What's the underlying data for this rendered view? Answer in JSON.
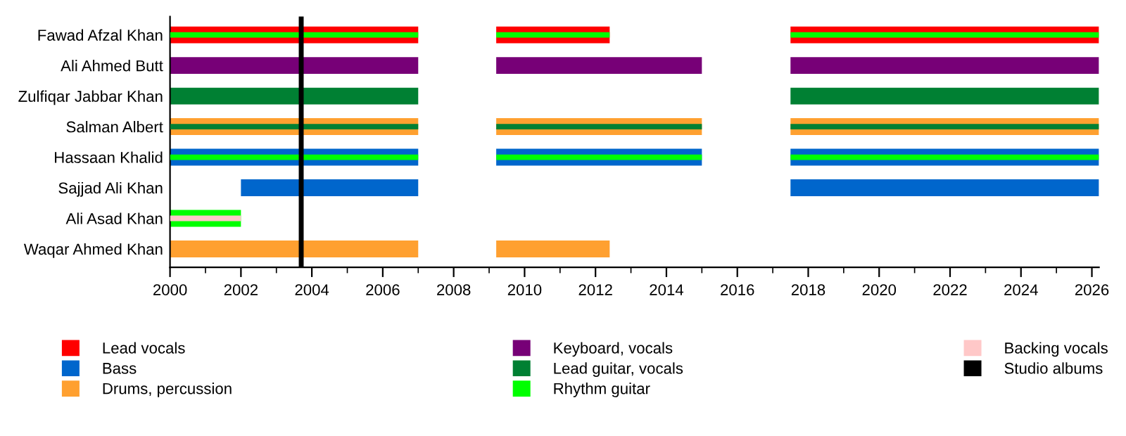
{
  "chart_data": {
    "type": "bar",
    "orientation": "horizontal",
    "categories": [
      "Fawad Afzal Khan",
      "Ali Ahmed Butt",
      "Zulfiqar Jabbar Khan",
      "Salman Albert",
      "Hassaan Khalid",
      "Sajjad Ali Khan",
      "Ali Asad Khan",
      "Waqar Ahmed Khan"
    ],
    "series": [
      {
        "name": "Lead vocals",
        "color": "#ff0000",
        "base": [
          2000,
          null,
          null,
          null,
          null,
          null,
          null,
          null
        ],
        "values": [
          7,
          null,
          null,
          null,
          null,
          null,
          null,
          null
        ]
      },
      {
        "color": "#ff0000",
        "base": [
          2009.2,
          null,
          null,
          null,
          null,
          null,
          null,
          null
        ],
        "values": [
          3.2,
          null,
          null,
          null,
          null,
          null,
          null,
          null
        ]
      },
      {
        "color": "#ff0000",
        "base": [
          2017.5,
          null,
          null,
          null,
          null,
          null,
          null,
          null
        ],
        "values": [
          8.7,
          null,
          null,
          null,
          null,
          null,
          null,
          null
        ]
      },
      {
        "name": "Bass",
        "color": "#0066cc",
        "base": [
          null,
          null,
          null,
          null,
          2000,
          2002,
          null,
          null
        ],
        "values": [
          null,
          null,
          null,
          null,
          7,
          5,
          null,
          null
        ]
      },
      {
        "color": "#0066cc",
        "base": [
          null,
          null,
          null,
          null,
          2009.2,
          null,
          null,
          null
        ],
        "values": [
          null,
          null,
          null,
          null,
          5.8,
          null,
          null,
          null
        ]
      },
      {
        "color": "#0066cc",
        "base": [
          null,
          null,
          null,
          null,
          2017.5,
          2017.5,
          null,
          null
        ],
        "values": [
          null,
          null,
          null,
          null,
          8.7,
          8.7,
          null,
          null
        ]
      },
      {
        "name": "Drums, percussion",
        "color": "#ffa030",
        "base": [
          null,
          null,
          null,
          2000,
          null,
          null,
          null,
          2000
        ],
        "values": [
          null,
          null,
          null,
          7,
          null,
          null,
          null,
          7
        ]
      },
      {
        "color": "#ffa030",
        "base": [
          null,
          null,
          null,
          2009.2,
          null,
          null,
          null,
          2009.2
        ],
        "values": [
          null,
          null,
          null,
          5.8,
          null,
          null,
          null,
          3.2
        ]
      },
      {
        "color": "#ffa030",
        "base": [
          null,
          null,
          null,
          2017.5,
          null,
          null,
          null,
          null
        ],
        "values": [
          null,
          null,
          null,
          8.7,
          null,
          null,
          null,
          null
        ]
      },
      {
        "name": "Keyboard, vocals",
        "color": "#770077",
        "base": [
          null,
          2000,
          null,
          null,
          null,
          null,
          null,
          null
        ],
        "values": [
          null,
          7,
          null,
          null,
          null,
          null,
          null,
          null
        ]
      },
      {
        "color": "#770077",
        "base": [
          null,
          2009.2,
          null,
          null,
          null,
          null,
          null,
          null
        ],
        "values": [
          null,
          5.8,
          null,
          null,
          null,
          null,
          null,
          null
        ]
      },
      {
        "color": "#770077",
        "base": [
          null,
          2017.5,
          null,
          null,
          null,
          null,
          null,
          null
        ],
        "values": [
          null,
          8.7,
          null,
          null,
          null,
          null,
          null,
          null
        ]
      },
      {
        "name": "Lead guitar, vocals",
        "color": "#008033",
        "base": [
          null,
          null,
          2000,
          2000,
          null,
          null,
          null,
          null
        ],
        "values": [
          null,
          null,
          7,
          7,
          null,
          null,
          null,
          null
        ]
      },
      {
        "color": "#008033",
        "base": [
          null,
          null,
          null,
          2009.2,
          null,
          null,
          null,
          null
        ],
        "values": [
          null,
          null,
          null,
          5.8,
          null,
          null,
          null,
          null
        ]
      },
      {
        "color": "#008033",
        "base": [
          null,
          null,
          2017.5,
          2017.5,
          null,
          null,
          null,
          null
        ],
        "values": [
          null,
          null,
          8.7,
          8.7,
          null,
          null,
          null,
          null
        ]
      },
      {
        "name": "Rhythm guitar",
        "color": "#00ff00",
        "base": [
          2000,
          null,
          null,
          null,
          2000,
          null,
          2000,
          null
        ],
        "values": [
          7,
          null,
          null,
          null,
          7,
          null,
          2,
          null
        ]
      },
      {
        "color": "#00ff00",
        "base": [
          2009.2,
          null,
          null,
          null,
          2009.2,
          null,
          null,
          null
        ],
        "values": [
          3.2,
          null,
          null,
          null,
          5.8,
          null,
          null,
          null
        ]
      },
      {
        "color": "#00ff00",
        "base": [
          2017.5,
          null,
          null,
          null,
          2017.5,
          null,
          null,
          null
        ],
        "values": [
          8.7,
          null,
          null,
          null,
          8.7,
          null,
          null,
          null
        ]
      },
      {
        "name": "Backing vocals",
        "color": "#ffc8c8",
        "base": [
          null,
          null,
          null,
          null,
          null,
          null,
          2000,
          null
        ],
        "values": [
          null,
          null,
          null,
          null,
          null,
          null,
          2,
          null
        ]
      }
    ],
    "ref_lines": [
      {
        "axis": "x",
        "value": 2003.7,
        "label": "Studio albums",
        "color": "#000000"
      }
    ],
    "xlim": [
      2000,
      2026.2
    ],
    "xticks": [
      2000,
      {
        "value": 2001,
        "label": null
      },
      2002,
      {
        "value": 2003,
        "label": null
      },
      2004,
      {
        "value": 2005,
        "label": null
      },
      2006,
      {
        "value": 2007,
        "label": null
      },
      2008,
      {
        "value": 2009,
        "label": null
      },
      2010,
      {
        "value": 2011,
        "label": null
      },
      2012,
      {
        "value": 2013,
        "label": null
      },
      2014,
      {
        "value": 2015,
        "label": null
      },
      2016,
      {
        "value": 2017,
        "label": null
      },
      2018,
      {
        "value": 2019,
        "label": null
      },
      2020,
      {
        "value": 2021,
        "label": null
      },
      2022,
      {
        "value": 2023,
        "label": null
      },
      2024,
      {
        "value": 2025,
        "label": null
      },
      2026
    ],
    "grid": false,
    "legend": "bottom"
  }
}
